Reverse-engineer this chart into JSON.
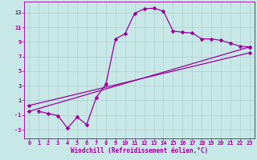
{
  "xlabel": "Windchill (Refroidissement éolien,°C)",
  "bg_color": "#c8e8e8",
  "line_color": "#990099",
  "grid_color": "#b0d0d0",
  "xlim": [
    -0.5,
    23.5
  ],
  "ylim": [
    -4.2,
    14.5
  ],
  "xticks": [
    0,
    1,
    2,
    3,
    4,
    5,
    6,
    7,
    8,
    9,
    10,
    11,
    12,
    13,
    14,
    15,
    16,
    17,
    18,
    19,
    20,
    21,
    22,
    23
  ],
  "yticks": [
    -3,
    -1,
    1,
    3,
    5,
    7,
    9,
    11,
    13
  ],
  "line1_x": [
    1,
    2,
    3,
    4,
    5,
    6,
    7,
    8,
    9,
    10,
    11,
    12,
    13,
    14,
    15,
    16,
    17,
    18,
    19,
    20,
    21,
    22,
    23
  ],
  "line1_y": [
    -0.5,
    -0.8,
    -1.1,
    -2.8,
    -1.3,
    -2.3,
    1.4,
    3.2,
    9.4,
    10.1,
    12.9,
    13.5,
    13.6,
    13.2,
    10.5,
    10.3,
    10.2,
    9.4,
    9.4,
    9.2,
    8.8,
    8.4,
    8.3
  ],
  "line2_x": [
    0,
    23
  ],
  "line2_y": [
    -0.5,
    8.3
  ],
  "line3_x": [
    0,
    23
  ],
  "line3_y": [
    0.3,
    7.5
  ],
  "tick_fontsize": 5.0,
  "xlabel_fontsize": 5.5
}
